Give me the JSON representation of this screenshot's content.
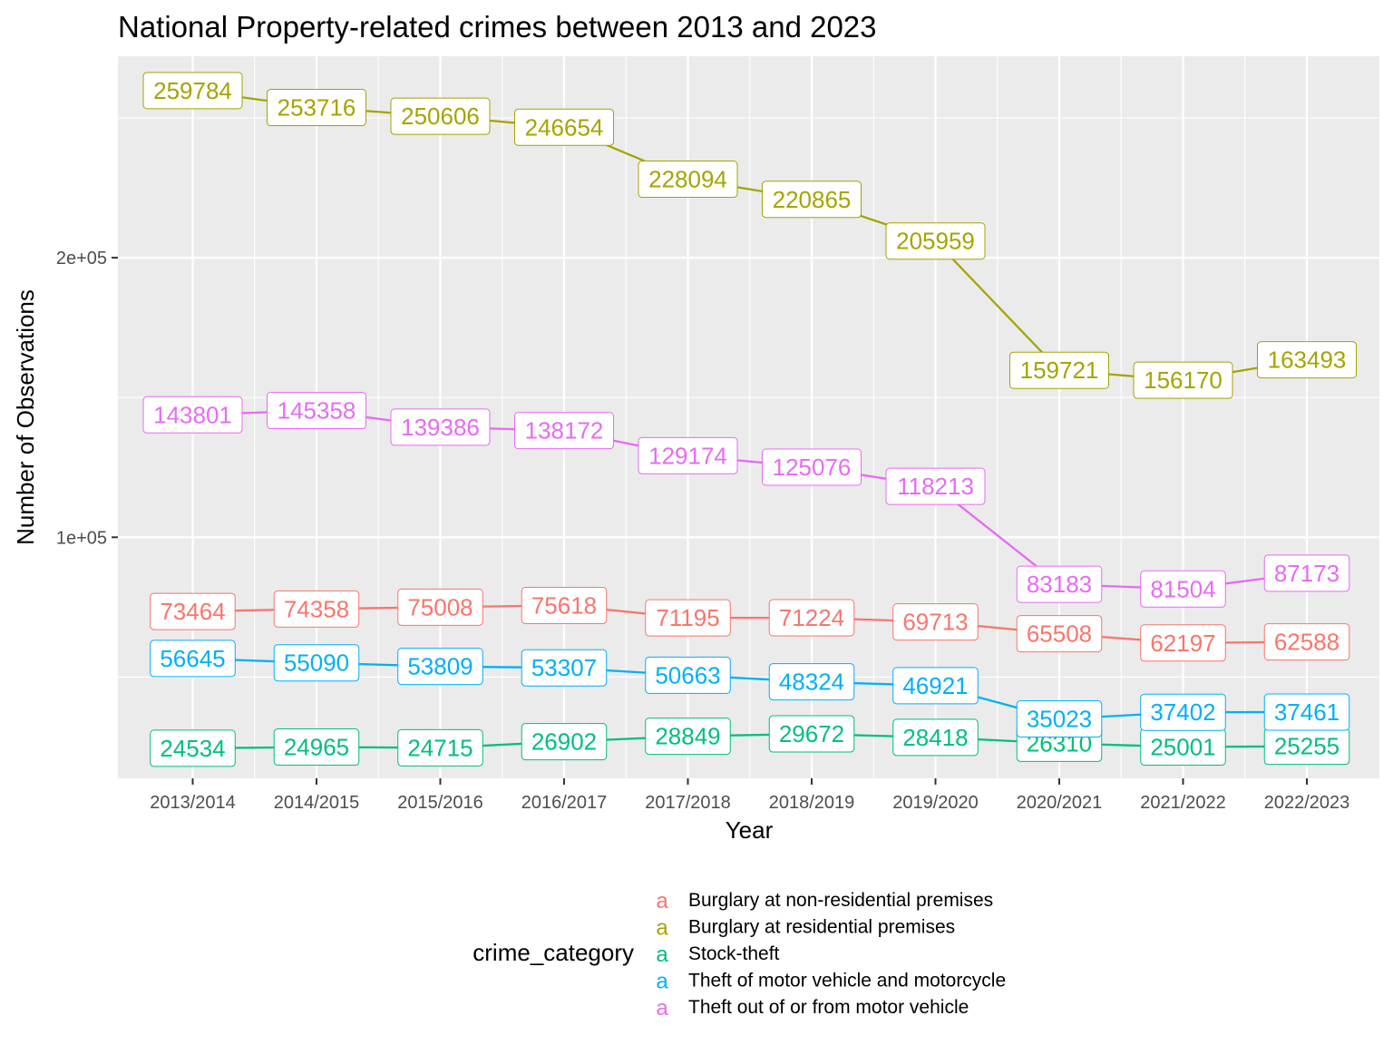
{
  "chart_data": {
    "type": "line",
    "title": "National Property-related crimes between 2013 and 2023",
    "xlabel": "Year",
    "ylabel": "Number of Observations",
    "categories": [
      "2013/2014",
      "2014/2015",
      "2015/2016",
      "2016/2017",
      "2017/2018",
      "2018/2019",
      "2019/2020",
      "2020/2021",
      "2021/2022",
      "2022/2023"
    ],
    "y_ticks": [
      100000,
      200000
    ],
    "y_tick_labels": [
      "1e+05",
      "2e+05"
    ],
    "ylim": [
      18000,
      270000
    ],
    "grid": true,
    "legend": {
      "title": "crime_category",
      "position": "bottom",
      "key_glyph": "a"
    },
    "series": [
      {
        "name": "Burglary at non-residential premises",
        "color": "#F8766D",
        "values": [
          73464,
          74358,
          75008,
          75618,
          71195,
          71224,
          69713,
          65508,
          62197,
          62588
        ]
      },
      {
        "name": "Burglary at residential premises",
        "color": "#A3A500",
        "values": [
          259784,
          253716,
          250606,
          246654,
          228094,
          220865,
          205959,
          159721,
          156170,
          163493
        ]
      },
      {
        "name": "Stock-theft",
        "color": "#00BF7D",
        "values": [
          24534,
          24965,
          24715,
          26902,
          28849,
          29672,
          28418,
          26310,
          25001,
          25255
        ]
      },
      {
        "name": "Theft of motor vehicle and motorcycle",
        "color": "#00B0F6",
        "values": [
          56645,
          55090,
          53809,
          53307,
          50663,
          48324,
          46921,
          35023,
          37402,
          37461
        ]
      },
      {
        "name": "Theft out of or from motor vehicle",
        "color": "#E76BF3",
        "values": [
          143801,
          145358,
          139386,
          138172,
          129174,
          125076,
          118213,
          83183,
          81504,
          87173
        ]
      }
    ]
  }
}
